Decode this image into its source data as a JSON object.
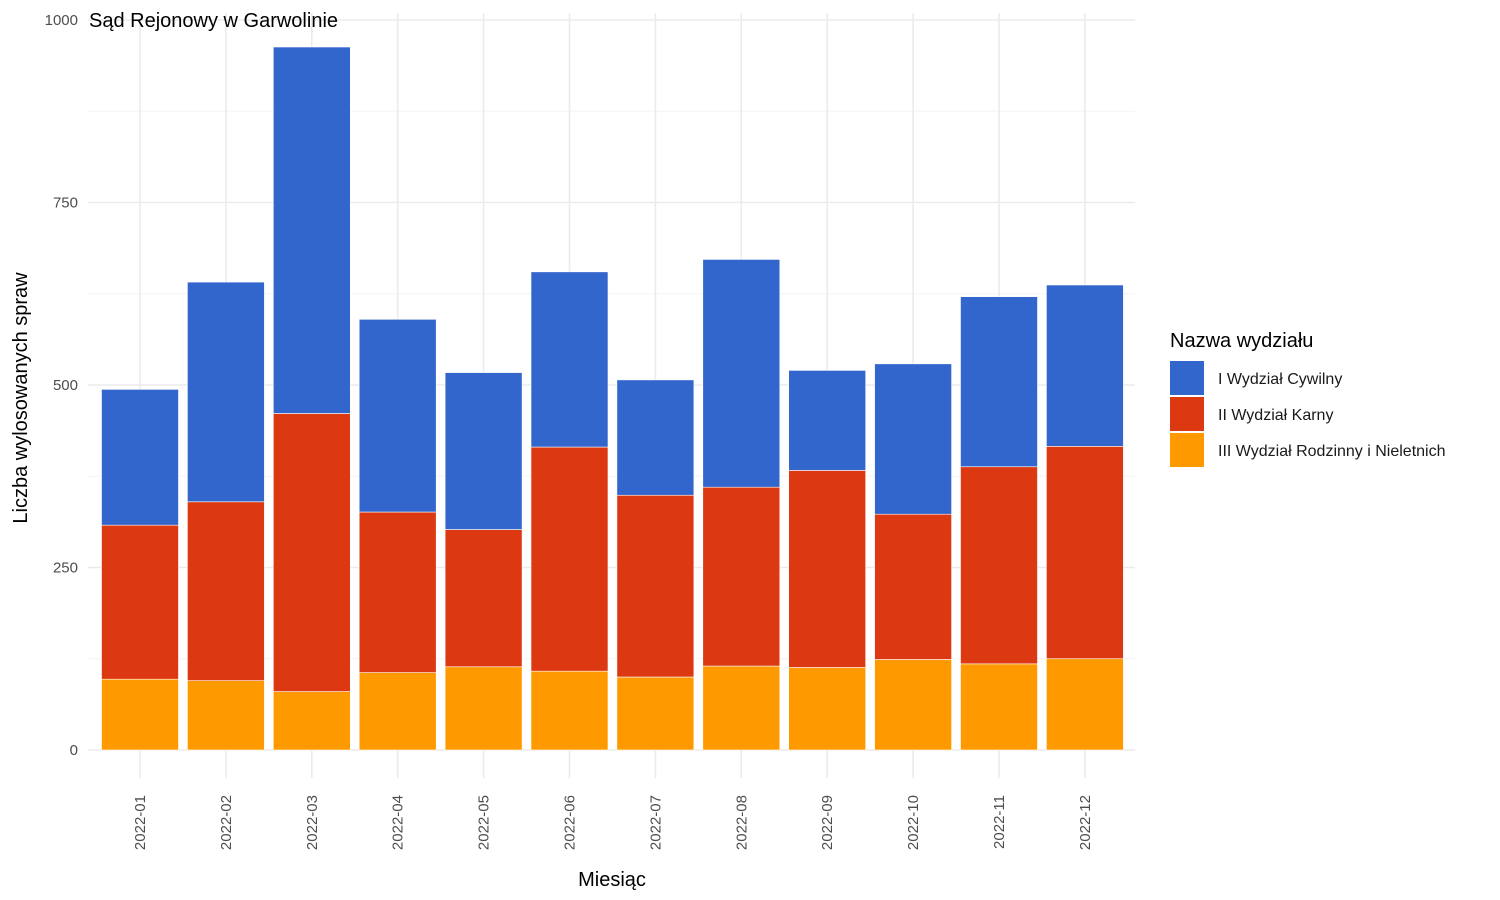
{
  "chart_data": {
    "type": "bar",
    "stacked": true,
    "title": "Sąd Rejonowy w Garwolinie",
    "xlabel": "Miesiąc",
    "ylabel": "Liczba wylosowanych spraw",
    "ylim": [
      0,
      1000
    ],
    "yticks": [
      0,
      250,
      500,
      750,
      1000
    ],
    "grid": true,
    "legend_title": "Nazwa wydziału",
    "legend_position": "right",
    "categories": [
      "2022-01",
      "2022-02",
      "2022-03",
      "2022-04",
      "2022-05",
      "2022-06",
      "2022-07",
      "2022-08",
      "2022-09",
      "2022-10",
      "2022-11",
      "2022-12"
    ],
    "series": [
      {
        "name": "I Wydział Cywilny",
        "color": "#3366cc",
        "values": [
          186,
          301,
          502,
          264,
          215,
          240,
          158,
          312,
          137,
          206,
          233,
          221
        ]
      },
      {
        "name": "II Wydział Karny",
        "color": "#dc3912",
        "values": [
          211,
          245,
          381,
          220,
          188,
          307,
          249,
          245,
          270,
          199,
          270,
          291
        ]
      },
      {
        "name": "III Wydział Rodzinny i Nieletnich",
        "color": "#ff9900",
        "values": [
          97,
          95,
          80,
          106,
          114,
          108,
          100,
          115,
          113,
          124,
          118,
          125
        ]
      }
    ]
  }
}
